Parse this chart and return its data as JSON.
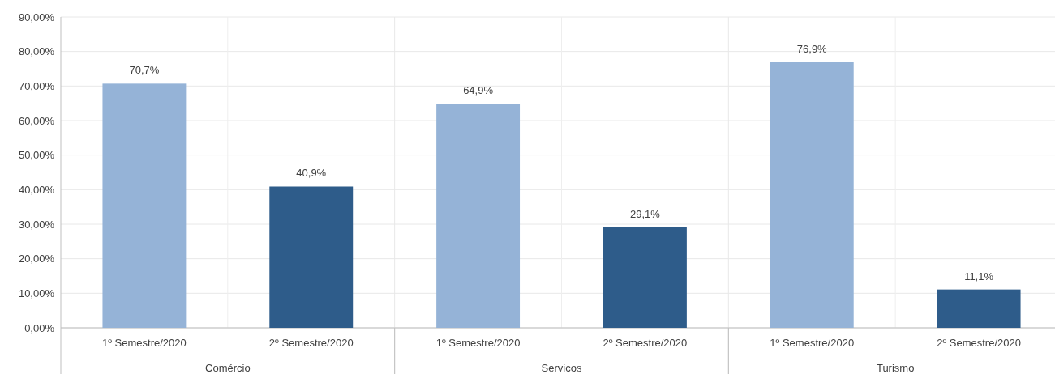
{
  "chart_data": {
    "type": "bar",
    "categories": [
      "Comércio",
      "Servicos",
      "Turismo"
    ],
    "series": [
      {
        "name": "1º Semestre/2020",
        "color": "#95b3d7",
        "values": [
          70.7,
          64.9,
          76.9
        ],
        "value_labels": [
          "70,7%",
          "64,9%",
          "76,9%"
        ]
      },
      {
        "name": "2º Semestre/2020",
        "color": "#2e5c8a",
        "values": [
          40.9,
          29.1,
          11.1
        ],
        "value_labels": [
          "40,9%",
          "29,1%",
          "11,1%"
        ]
      }
    ],
    "ylim": [
      0,
      90
    ],
    "yticks": [
      {
        "value": 0,
        "label": "0,00%"
      },
      {
        "value": 10,
        "label": "10,00%"
      },
      {
        "value": 20,
        "label": "20,00%"
      },
      {
        "value": 30,
        "label": "30,00%"
      },
      {
        "value": 40,
        "label": "40,00%"
      },
      {
        "value": 50,
        "label": "50,00%"
      },
      {
        "value": 60,
        "label": "60,00%"
      },
      {
        "value": 70,
        "label": "70,00%"
      },
      {
        "value": 80,
        "label": "80,00%"
      },
      {
        "value": 90,
        "label": "90,00%"
      }
    ],
    "grid": true
  }
}
